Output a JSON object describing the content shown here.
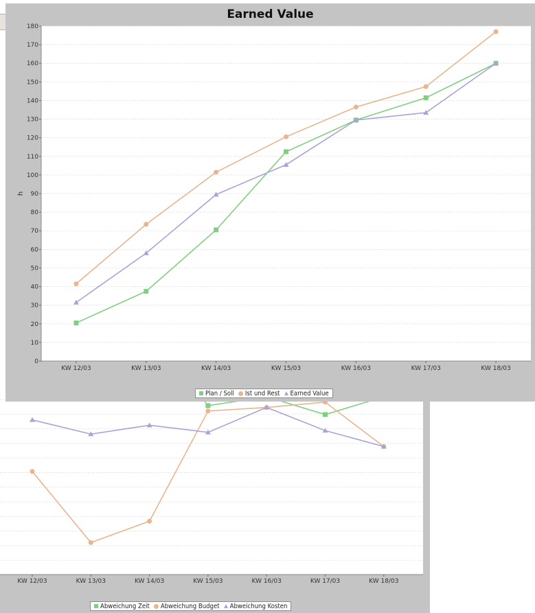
{
  "colors": {
    "plan": "#7ed07e",
    "ist": "#e9b48e",
    "ev": "#aaa3d8",
    "panel": "#c4c4c4",
    "grid": "#e2e2e2"
  },
  "chart_data": [
    {
      "type": "line",
      "title": "Earned Value",
      "xlabel": "",
      "ylabel": "h",
      "ylim": [
        0,
        180
      ],
      "yticks": [
        "0",
        "10",
        "20",
        "30",
        "40",
        "50",
        "60",
        "70",
        "80",
        "90",
        "100",
        "110",
        "120",
        "130",
        "140",
        "150",
        "160",
        "170",
        "180"
      ],
      "categories": [
        "KW 12/03",
        "KW 13/03",
        "KW 14/03",
        "KW 15/03",
        "KW 16/03",
        "KW 17/03",
        "KW 18/03"
      ],
      "grid": true,
      "legend_position": "bottom",
      "series": [
        {
          "name": "Plan / Soll",
          "marker": "square",
          "color_key": "plan",
          "values": [
            20.5,
            37.5,
            70.5,
            112.5,
            129.5,
            141.5,
            160
          ]
        },
        {
          "name": "Ist und Rest",
          "marker": "circle",
          "color_key": "ist",
          "values": [
            41.5,
            73.5,
            101.5,
            120.5,
            136.5,
            147.5,
            177
          ]
        },
        {
          "name": "Earned Value",
          "marker": "triangle",
          "color_key": "ev",
          "values": [
            31.5,
            58,
            89.5,
            105.5,
            129.5,
            133.5,
            160
          ]
        }
      ]
    },
    {
      "type": "line",
      "title": "",
      "xlabel": "",
      "ylabel": "",
      "categories": [
        "KW 12/03",
        "KW 13/03",
        "KW 14/03",
        "KW 15/03",
        "KW 16/03",
        "KW 17/03",
        "KW 18/03"
      ],
      "grid": true,
      "legend_position": "bottom",
      "series": [
        {
          "name": "Abweichung Zeit",
          "marker": "square",
          "color_key": "plan",
          "values": [
            null,
            null,
            null,
            0.95,
            1.0,
            0.9,
            1.0
          ]
        },
        {
          "name": "Abweichung Budget",
          "marker": "circle",
          "color_key": "ist",
          "values": [
            0.58,
            0.18,
            0.3,
            0.92,
            0.94,
            0.97,
            0.72
          ]
        },
        {
          "name": "Abweichung Kosten",
          "marker": "triangle",
          "color_key": "ev",
          "values": [
            0.87,
            0.79,
            0.84,
            0.8,
            0.94,
            0.81,
            0.72
          ]
        }
      ]
    }
  ]
}
